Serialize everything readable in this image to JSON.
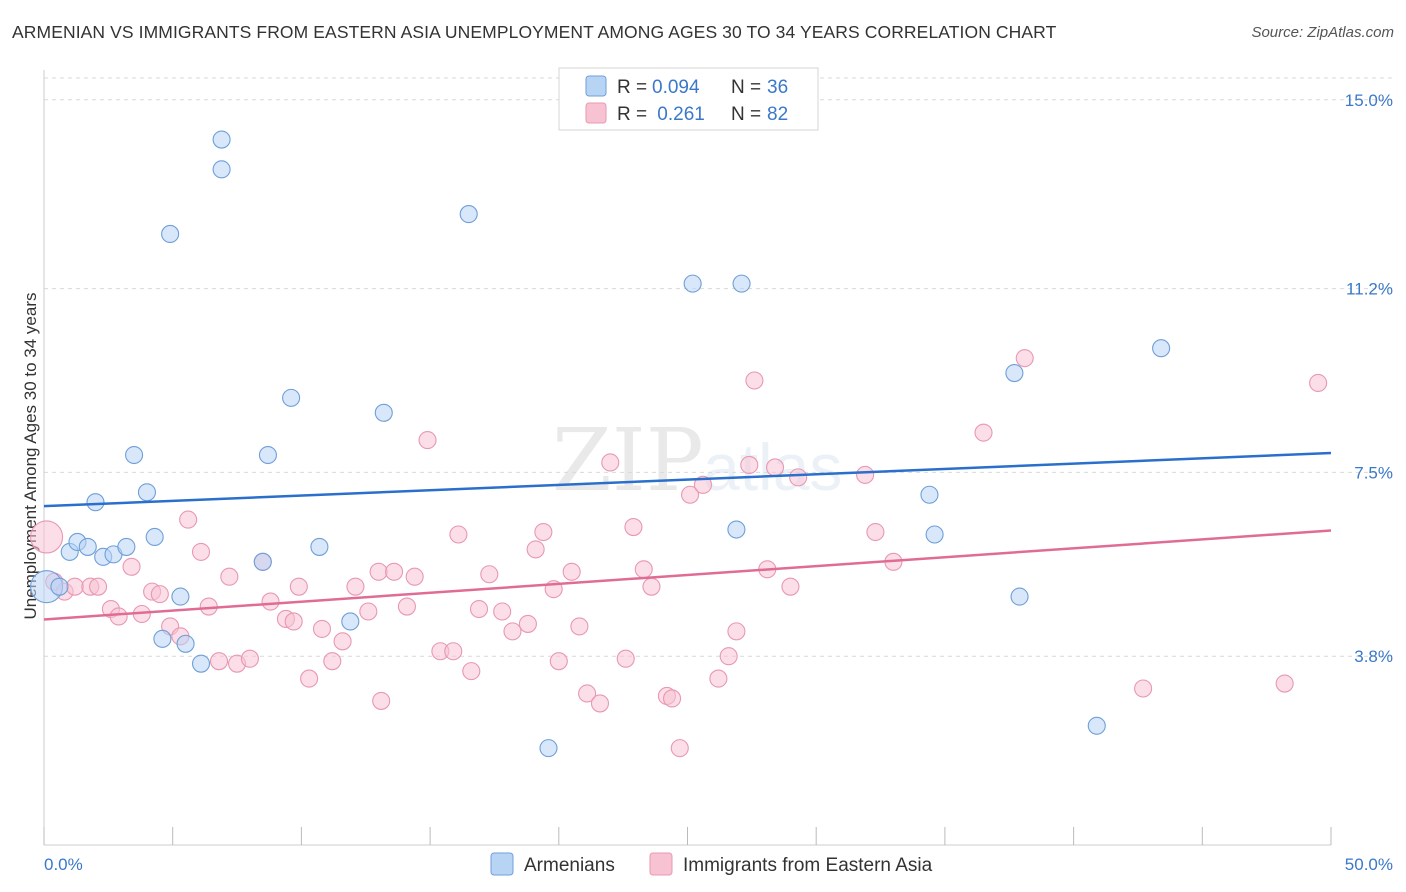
{
  "title": "ARMENIAN VS IMMIGRANTS FROM EASTERN ASIA UNEMPLOYMENT AMONG AGES 30 TO 34 YEARS CORRELATION CHART",
  "source": "Source: ZipAtlas.com",
  "watermark": {
    "zip": "ZIP",
    "atlas": "atlas"
  },
  "colors": {
    "blue_fill": "#b8d4f5",
    "blue_stroke": "#6f9fd8",
    "blue_line": "#2a6fcc",
    "pink_fill": "#f7c3d3",
    "pink_stroke": "#e898b2",
    "pink_line": "#e06c96",
    "tick_text": "#3a78c9",
    "grid": "#d9d9d9"
  },
  "legend_top": {
    "rows": [
      {
        "r_label": "R =",
        "r_value": "0.094",
        "n_label": "N =",
        "n_value": "36"
      },
      {
        "r_label": "R =",
        "r_value": " 0.261",
        "n_label": "N =",
        "n_value": "82"
      }
    ]
  },
  "legend_bottom": {
    "series1": "Armenians",
    "series2": "Immigrants from Eastern Asia"
  },
  "chart_data": {
    "type": "scatter",
    "title": "ARMENIAN VS IMMIGRANTS FROM EASTERN ASIA UNEMPLOYMENT AMONG AGES 30 TO 34 YEARS CORRELATION CHART",
    "xlabel": "",
    "ylabel": "Unemployment Among Ages 30 to 34 years",
    "xlim": [
      0,
      50
    ],
    "ylim": [
      0,
      15.6
    ],
    "x_tick_labels": [
      "0.0%",
      "50.0%"
    ],
    "y_ticks": [
      3.8,
      7.5,
      11.2,
      15.0
    ],
    "y_tick_labels": [
      "3.8%",
      "7.5%",
      "11.2%",
      "15.0%"
    ],
    "grid": true,
    "legend_placement": "top-center",
    "series": [
      {
        "name": "Armenians",
        "color": "#6f9fd8",
        "trend": {
          "x": [
            0,
            50
          ],
          "y": [
            6.82,
            7.89
          ]
        },
        "points": [
          [
            0.1,
            5.2
          ],
          [
            0.6,
            5.2
          ],
          [
            1.0,
            5.9
          ],
          [
            1.3,
            6.1
          ],
          [
            1.7,
            6.0
          ],
          [
            2.0,
            6.9
          ],
          [
            2.3,
            5.8
          ],
          [
            2.7,
            5.85
          ],
          [
            3.2,
            6.0
          ],
          [
            3.5,
            7.85
          ],
          [
            4.0,
            7.1
          ],
          [
            4.3,
            6.2
          ],
          [
            4.9,
            12.3
          ],
          [
            5.3,
            5.0
          ],
          [
            4.6,
            4.15
          ],
          [
            5.5,
            4.05
          ],
          [
            6.1,
            3.65
          ],
          [
            6.9,
            14.2
          ],
          [
            6.9,
            13.6
          ],
          [
            8.5,
            5.7
          ],
          [
            8.7,
            7.85
          ],
          [
            9.6,
            9.0
          ],
          [
            10.7,
            6.0
          ],
          [
            11.9,
            4.5
          ],
          [
            13.2,
            8.7
          ],
          [
            16.5,
            12.7
          ],
          [
            19.6,
            1.95
          ],
          [
            25.2,
            11.3
          ],
          [
            27.1,
            11.3
          ],
          [
            26.9,
            6.35
          ],
          [
            34.4,
            7.05
          ],
          [
            34.6,
            6.25
          ],
          [
            37.7,
            9.5
          ],
          [
            37.9,
            5.0
          ],
          [
            43.4,
            10.0
          ],
          [
            40.9,
            2.4
          ]
        ]
      },
      {
        "name": "Immigrants from Eastern Asia",
        "color": "#e898b2",
        "trend": {
          "x": [
            0,
            50
          ],
          "y": [
            4.54,
            6.33
          ]
        },
        "points": [
          [
            0.1,
            6.2
          ],
          [
            0.4,
            5.3
          ],
          [
            0.8,
            5.1
          ],
          [
            1.2,
            5.2
          ],
          [
            1.8,
            5.2
          ],
          [
            2.1,
            5.2
          ],
          [
            2.6,
            4.75
          ],
          [
            2.9,
            4.6
          ],
          [
            3.4,
            5.6
          ],
          [
            3.8,
            4.65
          ],
          [
            4.2,
            5.1
          ],
          [
            4.5,
            5.05
          ],
          [
            4.9,
            4.4
          ],
          [
            5.3,
            4.2
          ],
          [
            5.6,
            6.55
          ],
          [
            6.1,
            5.9
          ],
          [
            6.4,
            4.8
          ],
          [
            6.8,
            3.7
          ],
          [
            7.2,
            5.4
          ],
          [
            7.5,
            3.65
          ],
          [
            8.0,
            3.75
          ],
          [
            8.5,
            5.7
          ],
          [
            8.8,
            4.9
          ],
          [
            9.4,
            4.55
          ],
          [
            9.7,
            4.5
          ],
          [
            9.9,
            5.2
          ],
          [
            10.3,
            3.35
          ],
          [
            10.8,
            4.35
          ],
          [
            11.2,
            3.7
          ],
          [
            11.6,
            4.1
          ],
          [
            12.1,
            5.2
          ],
          [
            12.6,
            4.7
          ],
          [
            13.0,
            5.5
          ],
          [
            13.1,
            2.9
          ],
          [
            13.6,
            5.5
          ],
          [
            14.1,
            4.8
          ],
          [
            14.4,
            5.4
          ],
          [
            14.9,
            8.15
          ],
          [
            15.4,
            3.9
          ],
          [
            15.9,
            3.9
          ],
          [
            16.1,
            6.25
          ],
          [
            16.6,
            3.5
          ],
          [
            16.9,
            4.75
          ],
          [
            17.3,
            5.45
          ],
          [
            17.8,
            4.7
          ],
          [
            18.2,
            4.3
          ],
          [
            18.8,
            4.45
          ],
          [
            19.1,
            5.95
          ],
          [
            19.4,
            6.3
          ],
          [
            19.8,
            5.15
          ],
          [
            20.0,
            3.7
          ],
          [
            20.5,
            5.5
          ],
          [
            20.8,
            4.4
          ],
          [
            21.1,
            3.05
          ],
          [
            21.6,
            2.85
          ],
          [
            22.0,
            7.7
          ],
          [
            22.6,
            3.75
          ],
          [
            22.9,
            6.4
          ],
          [
            23.3,
            5.55
          ],
          [
            23.6,
            5.2
          ],
          [
            24.2,
            3.0
          ],
          [
            24.4,
            2.95
          ],
          [
            24.7,
            1.95
          ],
          [
            25.1,
            7.05
          ],
          [
            25.6,
            7.25
          ],
          [
            26.2,
            3.35
          ],
          [
            26.6,
            3.8
          ],
          [
            26.9,
            4.3
          ],
          [
            27.6,
            9.35
          ],
          [
            28.1,
            5.55
          ],
          [
            28.4,
            7.6
          ],
          [
            29.0,
            5.2
          ],
          [
            29.3,
            7.4
          ],
          [
            31.9,
            7.45
          ],
          [
            32.3,
            6.3
          ],
          [
            33.0,
            5.7
          ],
          [
            36.5,
            8.3
          ],
          [
            38.1,
            9.8
          ],
          [
            42.7,
            3.15
          ],
          [
            48.2,
            3.25
          ],
          [
            49.5,
            9.3
          ],
          [
            27.4,
            7.65
          ]
        ]
      }
    ]
  }
}
